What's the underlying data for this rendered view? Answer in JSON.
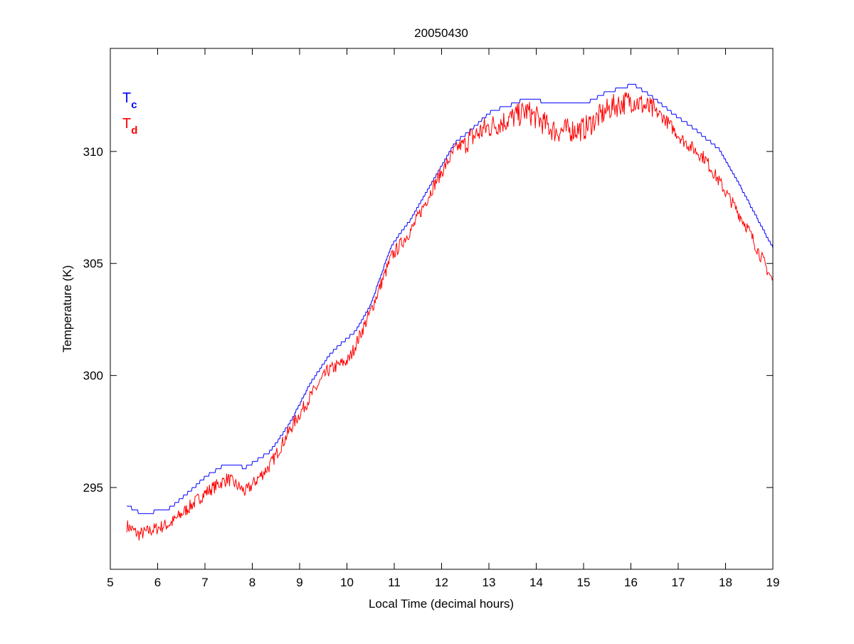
{
  "chart_data": {
    "type": "line",
    "title": "20050430",
    "xlabel": "Local Time (decimal hours)",
    "ylabel": "Temperature (K)",
    "xlim": [
      5,
      19
    ],
    "ylim": [
      291.35,
      314.6
    ],
    "xticks": [
      5,
      6,
      7,
      8,
      9,
      10,
      11,
      12,
      13,
      14,
      15,
      16,
      17,
      18,
      19
    ],
    "yticks": [
      295,
      300,
      305,
      310
    ],
    "grid": false,
    "legend_placement": "top-left",
    "series": [
      {
        "name": "T",
        "subscript": "c",
        "color": "#0000ff",
        "x": [
          5.35,
          5.68,
          6.28,
          7.03,
          7.41,
          7.86,
          8.38,
          8.83,
          9.21,
          9.66,
          10.19,
          10.49,
          10.94,
          11.39,
          11.84,
          12.29,
          12.59,
          13.05,
          13.5,
          13.8,
          14.4,
          15.0,
          15.45,
          16.05,
          16.35,
          16.95,
          17.41,
          17.86,
          18.3,
          19.0
        ],
        "y": [
          294.2,
          293.8,
          294.1,
          295.5,
          296.0,
          295.9,
          296.6,
          298.0,
          299.6,
          301.0,
          302.0,
          303.1,
          305.8,
          307.1,
          308.8,
          310.4,
          310.9,
          311.8,
          312.1,
          312.4,
          312.1,
          312.1,
          312.6,
          313.0,
          312.6,
          311.6,
          310.9,
          310.1,
          308.5,
          305.7
        ]
      },
      {
        "name": "T",
        "subscript": "d",
        "color": "#ff0000",
        "x": [
          5.35,
          5.6,
          6.28,
          7.03,
          7.48,
          7.86,
          8.38,
          8.83,
          9.21,
          9.59,
          10.04,
          10.49,
          10.94,
          11.39,
          11.84,
          12.29,
          12.9,
          13.5,
          13.8,
          14.4,
          15.0,
          15.6,
          16.05,
          16.65,
          17.1,
          17.56,
          18.0,
          18.46,
          19.0
        ],
        "y": [
          293.3,
          292.9,
          293.4,
          294.8,
          295.4,
          294.8,
          296.0,
          297.7,
          299.0,
          300.2,
          300.7,
          302.8,
          305.3,
          306.6,
          308.5,
          310.1,
          311.0,
          311.5,
          311.8,
          310.9,
          311.0,
          312.0,
          312.3,
          311.6,
          310.5,
          309.7,
          308.2,
          306.6,
          304.2
        ]
      }
    ]
  }
}
